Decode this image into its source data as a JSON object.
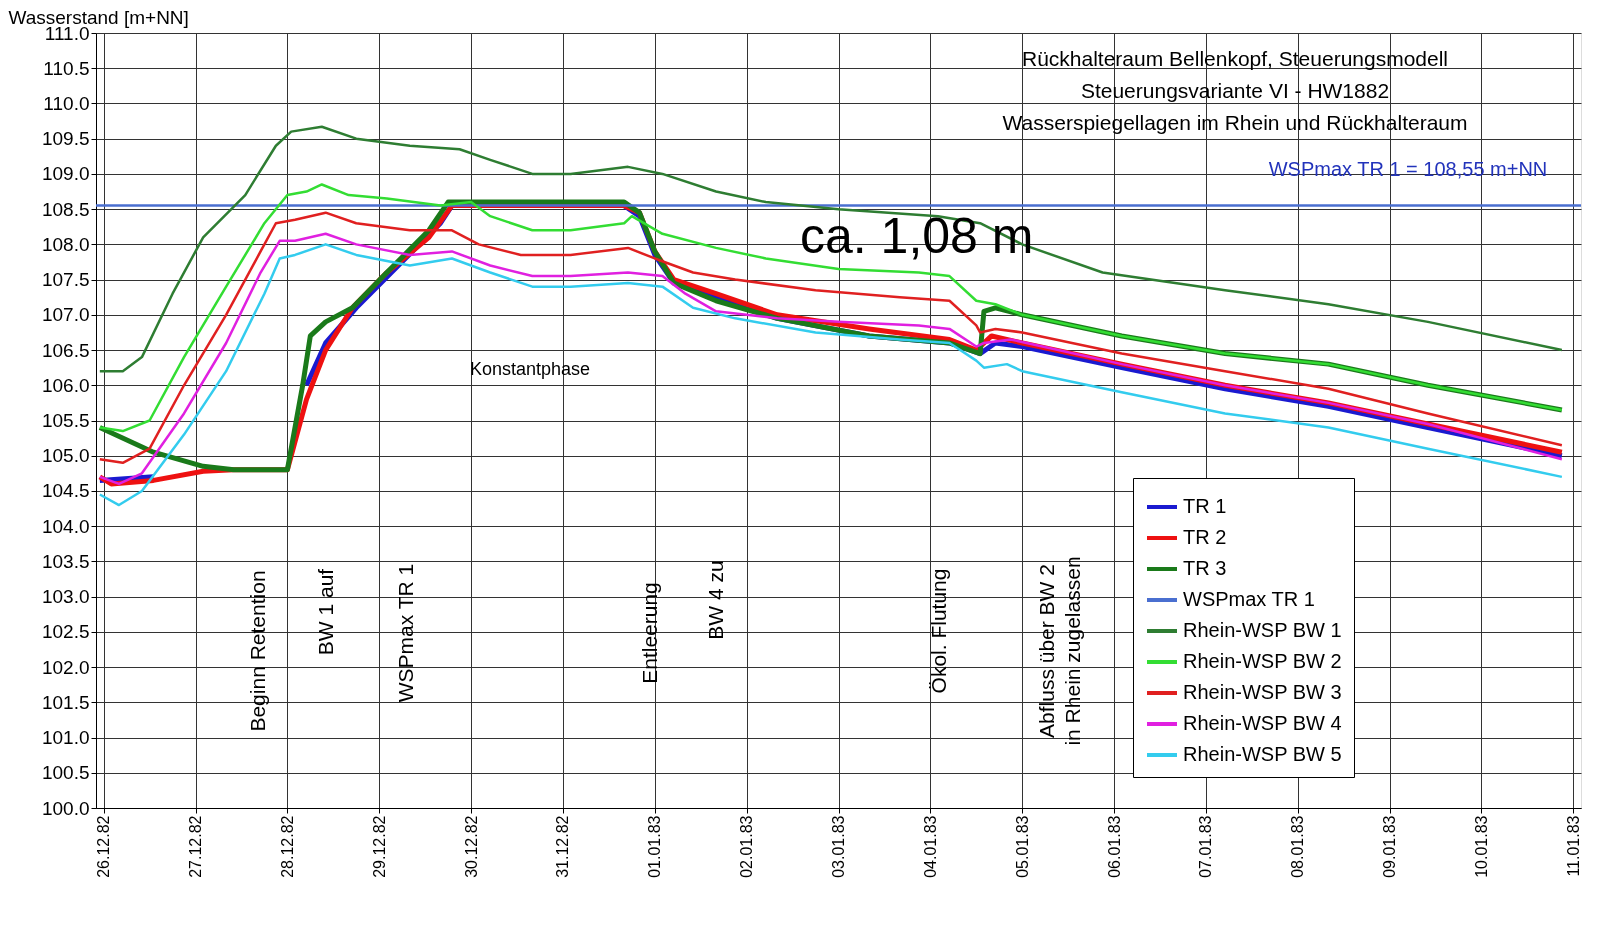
{
  "chart_data": {
    "type": "line",
    "title": "Rückhalteraum Bellenkopf, Steuerungsmodell\nSteuerungsvariante VI - HW1882\nWasserspiegellagen im Rhein und Rückhalteraum",
    "ylabel": "Wasserstand [m+NN]",
    "xlim": [
      "1982-12-25T22:00",
      "1983-01-11T02:00"
    ],
    "ylim": [
      100,
      111
    ],
    "yticks": [
      {
        "value": 100,
        "label": "100.0"
      },
      {
        "value": 100.5,
        "label": "100.5"
      },
      {
        "value": 101,
        "label": "101.0"
      },
      {
        "value": 101.5,
        "label": "101.5"
      },
      {
        "value": 102,
        "label": "102.0"
      },
      {
        "value": 102.5,
        "label": "102.5"
      },
      {
        "value": 103,
        "label": "103.0"
      },
      {
        "value": 103.5,
        "label": "103.5"
      },
      {
        "value": 104,
        "label": "104.0"
      },
      {
        "value": 104.5,
        "label": "104.5"
      },
      {
        "value": 105,
        "label": "105.0"
      },
      {
        "value": 105.5,
        "label": "105.5"
      },
      {
        "value": 106,
        "label": "106.0"
      },
      {
        "value": 106.5,
        "label": "106.5"
      },
      {
        "value": 107,
        "label": "107.0"
      },
      {
        "value": 107.5,
        "label": "107.5"
      },
      {
        "value": 108,
        "label": "108.0"
      },
      {
        "value": 108.5,
        "label": "108.5"
      },
      {
        "value": 109,
        "label": "109.0"
      },
      {
        "value": 109.5,
        "label": "109.5"
      },
      {
        "value": 110,
        "label": "110.0"
      },
      {
        "value": 110.5,
        "label": "110.5"
      },
      {
        "value": 111,
        "label": "111.0"
      }
    ],
    "xticks": [
      {
        "value": "1982-12-26",
        "label": "26.12.82"
      },
      {
        "value": "1982-12-27",
        "label": "27.12.82"
      },
      {
        "value": "1982-12-28",
        "label": "28.12.82"
      },
      {
        "value": "1982-12-29",
        "label": "29.12.82"
      },
      {
        "value": "1982-12-30",
        "label": "30.12.82"
      },
      {
        "value": "1982-12-31",
        "label": "31.12.82"
      },
      {
        "value": "1983-01-01",
        "label": "01.01.83"
      },
      {
        "value": "1983-01-02",
        "label": "02.01.83"
      },
      {
        "value": "1983-01-03",
        "label": "03.01.83"
      },
      {
        "value": "1983-01-04",
        "label": "04.01.83"
      },
      {
        "value": "1983-01-05",
        "label": "05.01.83"
      },
      {
        "value": "1983-01-06",
        "label": "06.01.83"
      },
      {
        "value": "1983-01-07",
        "label": "07.01.83"
      },
      {
        "value": "1983-01-08",
        "label": "08.01.83"
      },
      {
        "value": "1983-01-09",
        "label": "09.01.83"
      },
      {
        "value": "1983-01-10",
        "label": "10.01.83"
      },
      {
        "value": "1983-01-11",
        "label": "11.01.83"
      }
    ],
    "grid": true,
    "legend": "bottom right",
    "line_style": "solid",
    "marker": "none",
    "series": [
      {
        "name": "TR 1",
        "color": "#1a1ad0",
        "x": [
          "1982-12-25T23:00",
          "1982-12-26T13:00",
          "1982-12-27T10:00",
          "1982-12-28T00:00",
          "1982-12-28T05:00",
          "1982-12-28T10:00",
          "1982-12-28T18:00",
          "1982-12-29T05:00",
          "1982-12-29T16:00",
          "1982-12-29T19:00",
          "1982-12-31T16:00",
          "1982-12-31T20:00",
          "1983-01-01T00:00",
          "1983-01-01T05:00",
          "1983-01-01T16:00",
          "1983-01-02T08:00",
          "1983-01-03T08:00",
          "1983-01-04T05:00",
          "1983-01-04T13:00",
          "1983-01-04T17:00",
          "1983-01-05T00:00",
          "1983-01-06T02:00",
          "1983-01-07T05:00",
          "1983-01-08T08:00",
          "1983-01-09T10:00",
          "1983-01-10T21:00"
        ],
        "values": [
          104.65,
          104.7,
          null,
          null,
          106.0,
          106.6,
          107.1,
          107.7,
          108.3,
          108.55,
          108.55,
          108.4,
          107.85,
          107.45,
          107.25,
          106.95,
          106.7,
          106.6,
          106.45,
          106.6,
          106.55,
          106.25,
          105.95,
          105.7,
          105.4,
          105.0
        ]
      },
      {
        "name": "TR 2",
        "color": "#ee1111",
        "x": [
          "1982-12-25T23:00",
          "1982-12-26T02:00",
          "1982-12-26T13:00",
          "1982-12-27T02:00",
          "1982-12-27T10:00",
          "1982-12-28T00:00",
          "1982-12-28T05:00",
          "1982-12-28T10:00",
          "1982-12-28T17:00",
          "1982-12-29T02:00",
          "1982-12-29T13:00",
          "1982-12-29T19:00",
          "1982-12-31T16:00",
          "1982-12-31T20:00",
          "1983-01-01T00:00",
          "1983-01-01T05:00",
          "1983-01-01T16:00",
          "1983-01-02T08:00",
          "1983-01-03T08:00",
          "1983-01-04T05:00",
          "1983-01-04T12:00",
          "1983-01-04T16:00",
          "1983-01-05T00:00",
          "1983-01-06T02:00",
          "1983-01-07T05:00",
          "1983-01-08T08:00",
          "1983-01-09T10:00",
          "1983-01-10T21:00"
        ],
        "values": [
          104.7,
          104.6,
          104.65,
          104.78,
          104.8,
          104.8,
          105.8,
          106.5,
          107.1,
          107.6,
          108.1,
          108.55,
          108.55,
          108.45,
          107.9,
          107.5,
          107.3,
          107.0,
          106.8,
          106.65,
          106.5,
          106.7,
          106.6,
          106.3,
          106.0,
          105.75,
          105.45,
          105.05
        ]
      },
      {
        "name": "TR 3",
        "color": "#1a7a1a",
        "x": [
          "1982-12-25T23:00",
          "1982-12-26T13:00",
          "1982-12-27T02:00",
          "1982-12-27T10:00",
          "1982-12-28T00:00",
          "1982-12-28T04:00",
          "1982-12-28T06:00",
          "1982-12-28T10:00",
          "1982-12-28T17:00",
          "1982-12-29T02:00",
          "1982-12-29T13:00",
          "1982-12-29T18:00",
          "1982-12-31T16:00",
          "1982-12-31T20:00",
          "1983-01-01T00:00",
          "1983-01-01T05:00",
          "1983-01-01T16:00",
          "1983-01-02T08:00",
          "1983-01-03T08:00",
          "1983-01-04T05:00",
          "1983-01-04T13:00",
          "1983-01-04T14:00",
          "1983-01-04T17:00",
          "1983-01-05T00:00",
          "1983-01-06T02:00",
          "1983-01-07T05:00",
          "1983-01-08T08:00",
          "1983-01-09T10:00",
          "1983-01-10T21:00"
        ],
        "values": [
          105.4,
          105.05,
          104.85,
          104.8,
          104.8,
          106.0,
          106.7,
          106.9,
          107.1,
          107.6,
          108.2,
          108.6,
          108.6,
          108.45,
          107.9,
          107.45,
          107.2,
          106.95,
          106.7,
          106.6,
          106.45,
          107.05,
          107.1,
          107.0,
          106.7,
          106.45,
          106.3,
          106.0,
          105.65
        ]
      },
      {
        "name": "WSPmax TR 1",
        "color": "#4a6fd0",
        "x": [
          "1982-12-25T22:00",
          "1983-01-11T02:00"
        ],
        "values": [
          108.55,
          108.55
        ]
      },
      {
        "name": "Rhein-WSP BW 1",
        "color": "#2e7d32",
        "x": [
          "1982-12-25T23:00",
          "1982-12-26T05:00",
          "1982-12-26T10:00",
          "1982-12-26T18:00",
          "1982-12-27T02:00",
          "1982-12-27T13:00",
          "1982-12-27T21:00",
          "1982-12-28T01:00",
          "1982-12-28T09:00",
          "1982-12-28T18:00",
          "1982-12-29T08:00",
          "1982-12-29T21:00",
          "1982-12-30T05:00",
          "1982-12-30T16:00",
          "1982-12-31T02:00",
          "1982-12-31T17:00",
          "1983-01-01T02:00",
          "1983-01-01T16:00",
          "1983-01-02T05:00",
          "1983-01-03T00:00",
          "1983-01-03T13:00",
          "1983-01-04T02:00",
          "1983-01-04T13:00",
          "1983-01-05T00:00",
          "1983-01-05T21:00",
          "1983-01-07T05:00",
          "1983-01-08T08:00",
          "1983-01-09T10:00",
          "1983-01-10T21:00"
        ],
        "values": [
          106.2,
          106.2,
          106.4,
          107.3,
          108.1,
          108.7,
          109.4,
          109.6,
          109.67,
          109.5,
          109.4,
          109.35,
          109.2,
          109.0,
          109.0,
          109.1,
          109.0,
          108.75,
          108.6,
          108.5,
          108.45,
          108.4,
          108.3,
          108.0,
          107.6,
          107.35,
          107.15,
          106.9,
          106.5
        ]
      },
      {
        "name": "Rhein-WSP BW 2",
        "color": "#33dd33",
        "x": [
          "1982-12-25T23:00",
          "1982-12-26T05:00",
          "1982-12-26T12:00",
          "1982-12-26T21:00",
          "1982-12-27T08:00",
          "1982-12-27T18:00",
          "1982-12-28T00:00",
          "1982-12-28T05:00",
          "1982-12-28T09:00",
          "1982-12-28T16:00",
          "1982-12-29T02:00",
          "1982-12-29T16:00",
          "1982-12-30T00:00",
          "1982-12-30T05:00",
          "1982-12-30T16:00",
          "1982-12-31T02:00",
          "1982-12-31T16:00",
          "1982-12-31T18:00",
          "1983-01-01T02:00",
          "1983-01-01T16:00",
          "1983-01-02T05:00",
          "1983-01-03T00:00",
          "1983-01-03T21:00",
          "1983-01-04T05:00",
          "1983-01-04T12:00",
          "1983-01-04T17:00",
          "1983-01-05T00:00",
          "1983-01-06T02:00",
          "1983-01-07T05:00",
          "1983-01-08T08:00",
          "1983-01-09T10:00",
          "1983-01-10T21:00"
        ],
        "values": [
          105.4,
          105.35,
          105.5,
          106.4,
          107.4,
          108.3,
          108.7,
          108.75,
          108.85,
          108.7,
          108.65,
          108.55,
          108.6,
          108.4,
          108.2,
          108.2,
          108.3,
          108.4,
          108.15,
          107.95,
          107.8,
          107.65,
          107.6,
          107.55,
          107.2,
          107.15,
          107.0,
          106.7,
          106.45,
          106.3,
          106.0,
          105.65
        ]
      },
      {
        "name": "Rhein-WSP BW 3",
        "color": "#e02020",
        "x": [
          "1982-12-25T23:00",
          "1982-12-26T05:00",
          "1982-12-26T12:00",
          "1982-12-26T21:00",
          "1982-12-27T08:00",
          "1982-12-27T17:00",
          "1982-12-27T21:00",
          "1982-12-28T02:00",
          "1982-12-28T10:00",
          "1982-12-28T18:00",
          "1982-12-29T08:00",
          "1982-12-29T19:00",
          "1982-12-30T02:00",
          "1982-12-30T13:00",
          "1982-12-31T02:00",
          "1982-12-31T17:00",
          "1983-01-01T00:00",
          "1983-01-01T10:00",
          "1983-01-01T21:00",
          "1983-01-02T18:00",
          "1983-01-03T16:00",
          "1983-01-04T05:00",
          "1983-01-04T12:00",
          "1983-01-04T13:00",
          "1983-01-04T17:00",
          "1983-01-05T00:00",
          "1983-01-06T02:00",
          "1983-01-07T05:00",
          "1983-01-08T08:00",
          "1983-01-09T10:00",
          "1983-01-10T21:00"
        ],
        "values": [
          104.95,
          104.9,
          105.1,
          106.0,
          107.0,
          107.9,
          108.3,
          108.35,
          108.45,
          108.3,
          108.2,
          108.2,
          108.0,
          107.85,
          107.85,
          107.95,
          107.8,
          107.6,
          107.5,
          107.35,
          107.25,
          107.2,
          106.85,
          106.75,
          106.8,
          106.75,
          106.45,
          106.2,
          105.95,
          105.6,
          105.15
        ]
      },
      {
        "name": "Rhein-WSP BW 4",
        "color": "#e020e0",
        "x": [
          "1982-12-25T23:00",
          "1982-12-26T04:00",
          "1982-12-26T10:00",
          "1982-12-26T21:00",
          "1982-12-27T08:00",
          "1982-12-27T17:00",
          "1982-12-27T22:00",
          "1982-12-28T02:00",
          "1982-12-28T10:00",
          "1982-12-28T18:00",
          "1982-12-29T08:00",
          "1982-12-29T19:00",
          "1982-12-30T05:00",
          "1982-12-30T16:00",
          "1982-12-31T02:00",
          "1982-12-31T17:00",
          "1983-01-01T02:00",
          "1983-01-01T08:00",
          "1983-01-01T16:00",
          "1983-01-02T08:00",
          "1983-01-03T00:00",
          "1983-01-03T21:00",
          "1983-01-04T05:00",
          "1983-01-04T12:00",
          "1983-01-04T14:00",
          "1983-01-04T21:00",
          "1983-01-06T02:00",
          "1983-01-07T05:00",
          "1983-01-08T08:00",
          "1983-01-09T10:00",
          "1983-01-10T21:00"
        ],
        "values": [
          104.7,
          104.6,
          104.75,
          105.6,
          106.6,
          107.6,
          108.05,
          108.05,
          108.15,
          108.0,
          107.85,
          107.9,
          107.7,
          107.55,
          107.55,
          107.6,
          107.55,
          107.3,
          107.05,
          106.95,
          106.9,
          106.85,
          106.8,
          106.55,
          106.6,
          106.65,
          106.3,
          106.0,
          105.75,
          105.45,
          104.95
        ]
      },
      {
        "name": "Rhein-WSP BW 5",
        "color": "#33ccee",
        "x": [
          "1982-12-25T23:00",
          "1982-12-26T04:00",
          "1982-12-26T10:00",
          "1982-12-26T21:00",
          "1982-12-27T08:00",
          "1982-12-27T18:00",
          "1982-12-27T22:00",
          "1982-12-28T02:00",
          "1982-12-28T10:00",
          "1982-12-28T18:00",
          "1982-12-29T08:00",
          "1982-12-29T19:00",
          "1982-12-30T05:00",
          "1982-12-30T16:00",
          "1982-12-31T02:00",
          "1982-12-31T17:00",
          "1983-01-01T02:00",
          "1983-01-01T10:00",
          "1983-01-01T21:00",
          "1983-01-02T18:00",
          "1983-01-03T16:00",
          "1983-01-04T05:00",
          "1983-01-04T12:00",
          "1983-01-04T14:00",
          "1983-01-04T20:00",
          "1983-01-05T00:00",
          "1983-01-06T02:00",
          "1983-01-07T05:00",
          "1983-01-08T08:00",
          "1983-01-09T10:00",
          "1983-01-10T21:00"
        ],
        "values": [
          104.45,
          104.3,
          104.5,
          105.3,
          106.2,
          107.3,
          107.8,
          107.85,
          108.0,
          107.85,
          107.7,
          107.8,
          107.6,
          107.4,
          107.4,
          107.45,
          107.4,
          107.1,
          106.95,
          106.75,
          106.65,
          106.6,
          106.35,
          106.25,
          106.3,
          106.2,
          105.9,
          105.6,
          105.4,
          105.1,
          104.7
        ]
      }
    ],
    "annotations": [
      "WSPmax TR 1 = 108,55 m+NN",
      "ca. 1,08 m",
      "Konstantphase",
      "Beginn Retention",
      "BW 1 auf",
      "WSPmax TR 1",
      "Entleerung",
      "BW 4 zu",
      "Ökol. Flutung",
      "Abfluss über BW 2\nin Rhein zugelassen"
    ]
  }
}
